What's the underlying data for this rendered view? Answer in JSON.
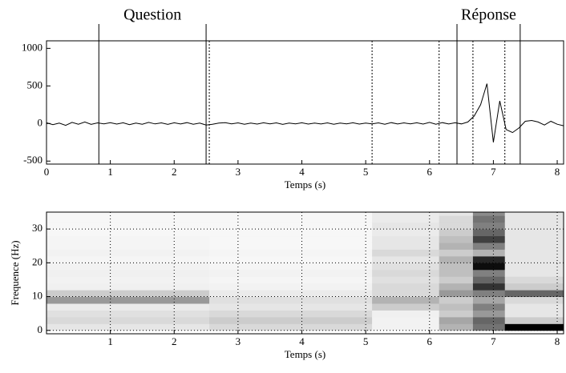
{
  "chart_data": [
    {
      "type": "line",
      "annotations": [
        "Question",
        "Réponse"
      ],
      "xlabel": "Temps (s)",
      "color": "#000000",
      "xlim": [
        0,
        8.1
      ],
      "ylim": [
        -540,
        1100
      ],
      "xticks": [
        0,
        1,
        2,
        3,
        4,
        5,
        6,
        7,
        8
      ],
      "yticks": [
        -500,
        0,
        500,
        1000
      ],
      "grid": false,
      "vlines": [
        {
          "x": 0.82,
          "style": "solid"
        },
        {
          "x": 2.5,
          "style": "solid"
        },
        {
          "x": 6.43,
          "style": "solid"
        },
        {
          "x": 7.42,
          "style": "solid"
        },
        {
          "x": 2.55,
          "style": "dotted"
        },
        {
          "x": 5.1,
          "style": "dotted"
        },
        {
          "x": 6.15,
          "style": "dotted"
        },
        {
          "x": 6.68,
          "style": "dotted"
        },
        {
          "x": 7.18,
          "style": "dotted"
        }
      ],
      "x": [
        0,
        0.1,
        0.2,
        0.3,
        0.4,
        0.5,
        0.6,
        0.7,
        0.8,
        0.9,
        1,
        1.1,
        1.2,
        1.3,
        1.4,
        1.5,
        1.6,
        1.7,
        1.8,
        1.9,
        2,
        2.1,
        2.2,
        2.3,
        2.4,
        2.5,
        2.6,
        2.7,
        2.8,
        2.9,
        3,
        3.1,
        3.2,
        3.3,
        3.4,
        3.5,
        3.6,
        3.7,
        3.8,
        3.9,
        4,
        4.1,
        4.2,
        4.3,
        4.4,
        4.5,
        4.6,
        4.7,
        4.8,
        4.9,
        5,
        5.1,
        5.2,
        5.3,
        5.4,
        5.5,
        5.6,
        5.7,
        5.8,
        5.9,
        6,
        6.1,
        6.2,
        6.3,
        6.4,
        6.5,
        6.6,
        6.7,
        6.8,
        6.9,
        7,
        7.1,
        7.2,
        7.3,
        7.4,
        7.5,
        7.6,
        7.7,
        7.8,
        7.9,
        8,
        8.1
      ],
      "values": [
        10,
        -15,
        5,
        -25,
        15,
        -10,
        20,
        -12,
        8,
        -5,
        12,
        -8,
        10,
        -15,
        5,
        -10,
        15,
        -5,
        8,
        -12,
        10,
        -6,
        12,
        -10,
        5,
        -20,
        -10,
        5,
        12,
        -5,
        8,
        -10,
        6,
        -8,
        10,
        -5,
        8,
        -12,
        6,
        -4,
        10,
        -8,
        5,
        -6,
        8,
        -10,
        6,
        -5,
        10,
        -8,
        5,
        -5,
        8,
        -10,
        12,
        -6,
        8,
        -5,
        10,
        -8,
        15,
        -10,
        12,
        -6,
        10,
        -5,
        20,
        100,
        250,
        530,
        -250,
        300,
        -80,
        -120,
        -60,
        30,
        40,
        20,
        -20,
        30,
        -10,
        -30
      ]
    },
    {
      "type": "heatmap",
      "xlabel": "Temps (s)",
      "ylabel": "Frequence (Hz)",
      "xlim": [
        0,
        8.1
      ],
      "ylim": [
        -1,
        35
      ],
      "xticks": [
        1,
        2,
        3,
        4,
        5,
        6,
        7,
        8
      ],
      "yticks": [
        0,
        10,
        20,
        30
      ],
      "grid": true,
      "x_edges": [
        0,
        2.55,
        5.1,
        6.15,
        6.68,
        7.18,
        8.1
      ],
      "y_edges": [
        0,
        2,
        4,
        6,
        8,
        10,
        12,
        14,
        16,
        18,
        20,
        22,
        24,
        26,
        28,
        30,
        32,
        34,
        36
      ],
      "values": [
        [
          0.1,
          0.15,
          0.12,
          0.08,
          0.4,
          0.2,
          0.06,
          0.05,
          0.06,
          0.05,
          0.04,
          0.05,
          0.04,
          0.04,
          0.03,
          0.03,
          0.03,
          0.03
        ],
        [
          0.15,
          0.2,
          0.15,
          0.1,
          0.12,
          0.08,
          0.05,
          0.04,
          0.05,
          0.04,
          0.03,
          0.04,
          0.03,
          0.03,
          0.03,
          0.03,
          0.03,
          0.03
        ],
        [
          0.05,
          0.05,
          0.06,
          0.2,
          0.3,
          0.15,
          0.15,
          0.12,
          0.15,
          0.12,
          0.1,
          0.15,
          0.1,
          0.1,
          0.08,
          0.1,
          0.08,
          0.08
        ],
        [
          0.3,
          0.35,
          0.2,
          0.25,
          0.2,
          0.4,
          0.3,
          0.2,
          0.25,
          0.25,
          0.3,
          0.2,
          0.3,
          0.25,
          0.2,
          0.15,
          0.15,
          0.1
        ],
        [
          0.55,
          0.6,
          0.4,
          0.5,
          0.35,
          0.5,
          0.8,
          0.6,
          0.5,
          0.95,
          0.85,
          0.3,
          0.5,
          0.75,
          0.6,
          0.5,
          0.55,
          0.45
        ],
        [
          1.0,
          0.2,
          0.1,
          0.1,
          0.15,
          0.6,
          0.2,
          0.15,
          0.1,
          0.1,
          0.1,
          0.1,
          0.1,
          0.1,
          0.1,
          0.1,
          0.1,
          0.1
        ]
      ]
    }
  ]
}
